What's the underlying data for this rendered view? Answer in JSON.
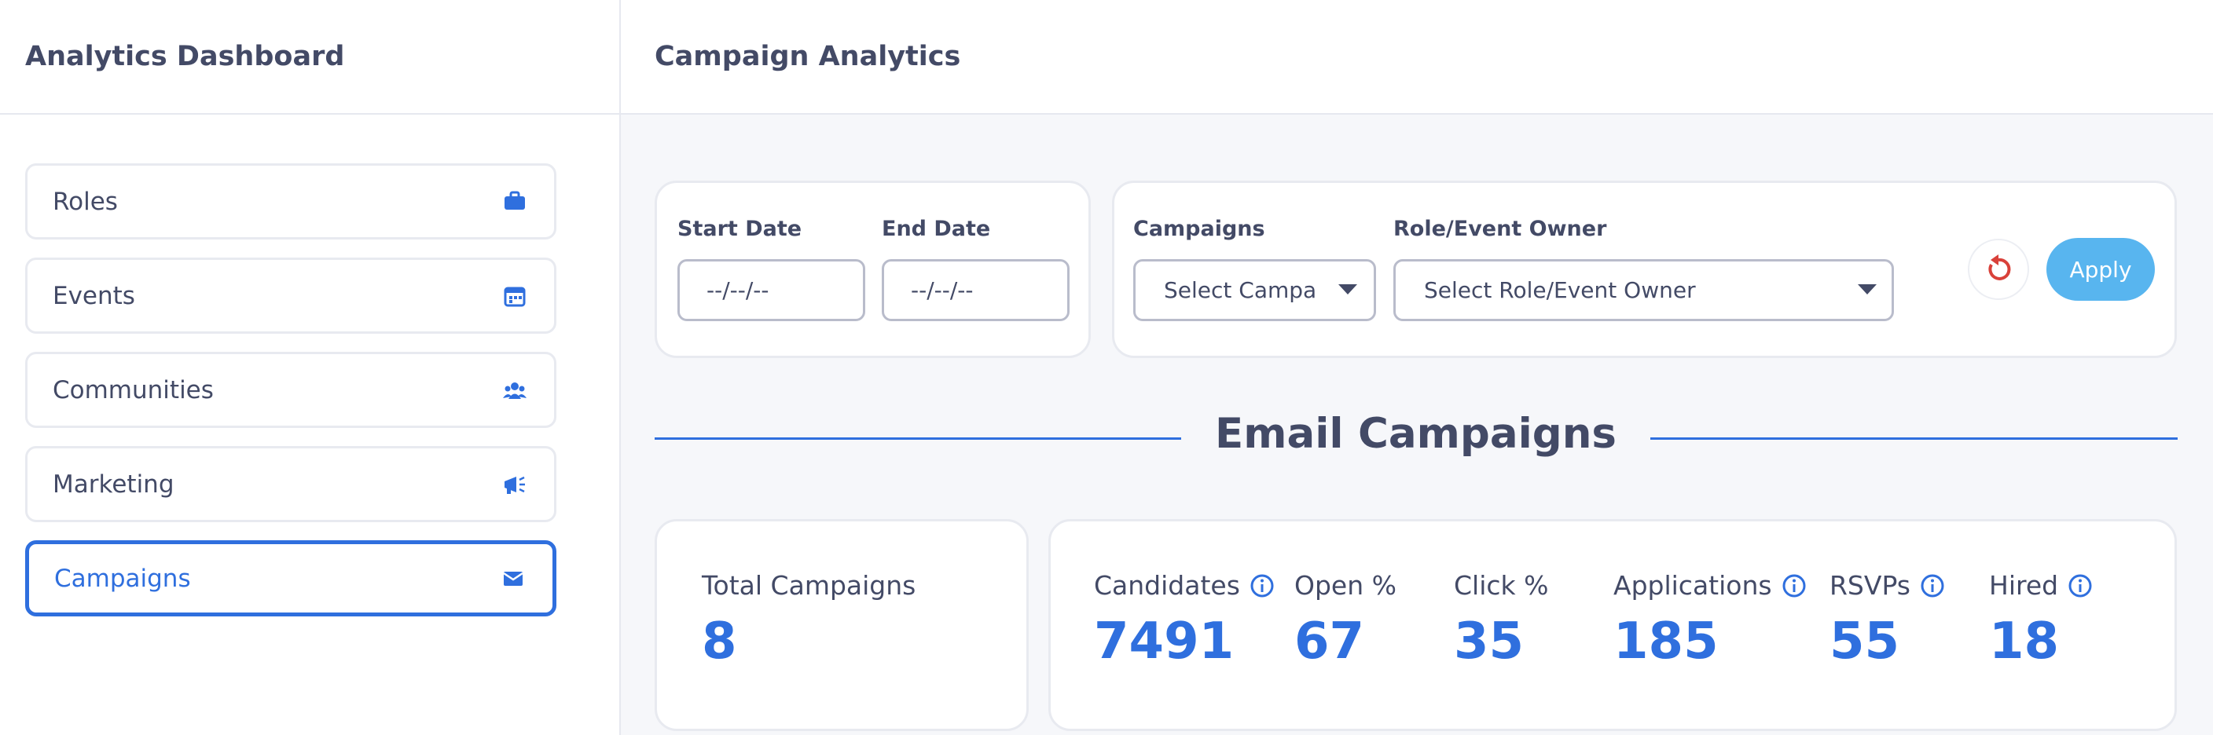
{
  "sidebar": {
    "title": "Analytics Dashboard",
    "items": [
      "Roles",
      "Events",
      "Communities",
      "Marketing",
      "Campaigns"
    ],
    "active": 4
  },
  "header": {
    "title": "Campaign Analytics"
  },
  "filters": {
    "start_label": "Start Date",
    "start_placeholder": "--/--/--",
    "end_label": "End Date",
    "end_placeholder": "--/--/--",
    "campaigns_label": "Campaigns",
    "campaigns_placeholder": "Select Campa",
    "owner_label": "Role/Event Owner",
    "owner_placeholder": "Select Role/Event Owner",
    "apply": "Apply"
  },
  "section": {
    "title": "Email Campaigns"
  },
  "stats": [
    {
      "label": "Total Campaigns",
      "value": "8"
    },
    {
      "label": "Candidates",
      "value": "7491",
      "info": true
    },
    {
      "label": "Open %",
      "value": "67"
    },
    {
      "label": "Click %",
      "value": "35"
    },
    {
      "label": "Applications",
      "value": "185",
      "info": true
    },
    {
      "label": "RSVPs",
      "value": "55",
      "info": true
    },
    {
      "label": "Hired",
      "value": "18",
      "info": true
    }
  ]
}
